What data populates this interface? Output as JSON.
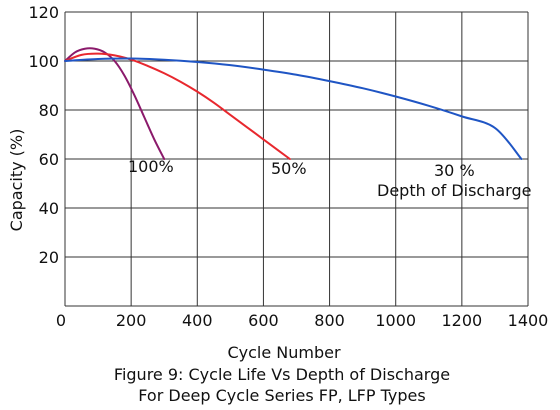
{
  "chart_data": {
    "type": "line",
    "ylabel": "Capacity  (%)",
    "xlabel": "Cycle Number",
    "caption": [
      "Figure 9: Cycle Life Vs Depth of Discharge",
      "For Deep Cycle Series FP,  LFP Types"
    ],
    "xlim": [
      0,
      1400
    ],
    "ylim": [
      0,
      120
    ],
    "xticks": [
      0,
      200,
      400,
      600,
      800,
      1000,
      1200,
      1400
    ],
    "yticks": [
      0,
      20,
      40,
      60,
      80,
      100,
      120
    ],
    "grid": true,
    "series": [
      {
        "name": "100%",
        "color": "#8B1A6B",
        "x": [
          0,
          30,
          60,
          90,
          120,
          150,
          180,
          210,
          240,
          270,
          300
        ],
        "y": [
          100,
          103.5,
          105,
          105,
          103.5,
          100,
          94,
          86,
          77,
          68,
          60
        ]
      },
      {
        "name": "50%",
        "color": "#E8282E",
        "x": [
          0,
          50,
          100,
          150,
          200,
          250,
          300,
          350,
          400,
          450,
          500,
          550,
          600,
          650,
          680
        ],
        "y": [
          100,
          102.5,
          103,
          102.3,
          100.6,
          98,
          95,
          91.5,
          87.5,
          83,
          78,
          73,
          68,
          63,
          60
        ]
      },
      {
        "name": "30 %",
        "color": "#1F55C4",
        "x": [
          0,
          100,
          200,
          300,
          400,
          500,
          600,
          700,
          800,
          900,
          1000,
          1100,
          1200,
          1300,
          1380
        ],
        "y": [
          100,
          100.8,
          101,
          100.5,
          99.6,
          98.3,
          96.5,
          94.4,
          91.8,
          88.9,
          85.5,
          81.7,
          77.4,
          72.7,
          60
        ]
      }
    ],
    "annotation": "Depth of Discharge"
  }
}
